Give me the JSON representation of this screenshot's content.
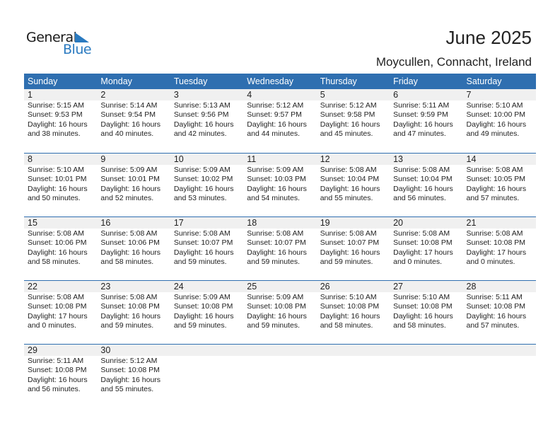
{
  "logo": {
    "general": "General",
    "blue": "Blue"
  },
  "header": {
    "title": "June 2025",
    "location": "Moycullen, Connacht, Ireland"
  },
  "colors": {
    "header_bg": "#2f6fb0",
    "date_band": "#f0f0f0",
    "logo_blue": "#2a7ac0"
  },
  "weekdays": [
    "Sunday",
    "Monday",
    "Tuesday",
    "Wednesday",
    "Thursday",
    "Friday",
    "Saturday"
  ],
  "weeks": [
    [
      {
        "day": "1",
        "sunrise": "Sunrise: 5:15 AM",
        "sunset": "Sunset: 9:53 PM",
        "daylight": "Daylight: 16 hours",
        "minutes": "and 38 minutes."
      },
      {
        "day": "2",
        "sunrise": "Sunrise: 5:14 AM",
        "sunset": "Sunset: 9:54 PM",
        "daylight": "Daylight: 16 hours",
        "minutes": "and 40 minutes."
      },
      {
        "day": "3",
        "sunrise": "Sunrise: 5:13 AM",
        "sunset": "Sunset: 9:56 PM",
        "daylight": "Daylight: 16 hours",
        "minutes": "and 42 minutes."
      },
      {
        "day": "4",
        "sunrise": "Sunrise: 5:12 AM",
        "sunset": "Sunset: 9:57 PM",
        "daylight": "Daylight: 16 hours",
        "minutes": "and 44 minutes."
      },
      {
        "day": "5",
        "sunrise": "Sunrise: 5:12 AM",
        "sunset": "Sunset: 9:58 PM",
        "daylight": "Daylight: 16 hours",
        "minutes": "and 45 minutes."
      },
      {
        "day": "6",
        "sunrise": "Sunrise: 5:11 AM",
        "sunset": "Sunset: 9:59 PM",
        "daylight": "Daylight: 16 hours",
        "minutes": "and 47 minutes."
      },
      {
        "day": "7",
        "sunrise": "Sunrise: 5:10 AM",
        "sunset": "Sunset: 10:00 PM",
        "daylight": "Daylight: 16 hours",
        "minutes": "and 49 minutes."
      }
    ],
    [
      {
        "day": "8",
        "sunrise": "Sunrise: 5:10 AM",
        "sunset": "Sunset: 10:01 PM",
        "daylight": "Daylight: 16 hours",
        "minutes": "and 50 minutes."
      },
      {
        "day": "9",
        "sunrise": "Sunrise: 5:09 AM",
        "sunset": "Sunset: 10:01 PM",
        "daylight": "Daylight: 16 hours",
        "minutes": "and 52 minutes."
      },
      {
        "day": "10",
        "sunrise": "Sunrise: 5:09 AM",
        "sunset": "Sunset: 10:02 PM",
        "daylight": "Daylight: 16 hours",
        "minutes": "and 53 minutes."
      },
      {
        "day": "11",
        "sunrise": "Sunrise: 5:09 AM",
        "sunset": "Sunset: 10:03 PM",
        "daylight": "Daylight: 16 hours",
        "minutes": "and 54 minutes."
      },
      {
        "day": "12",
        "sunrise": "Sunrise: 5:08 AM",
        "sunset": "Sunset: 10:04 PM",
        "daylight": "Daylight: 16 hours",
        "minutes": "and 55 minutes."
      },
      {
        "day": "13",
        "sunrise": "Sunrise: 5:08 AM",
        "sunset": "Sunset: 10:04 PM",
        "daylight": "Daylight: 16 hours",
        "minutes": "and 56 minutes."
      },
      {
        "day": "14",
        "sunrise": "Sunrise: 5:08 AM",
        "sunset": "Sunset: 10:05 PM",
        "daylight": "Daylight: 16 hours",
        "minutes": "and 57 minutes."
      }
    ],
    [
      {
        "day": "15",
        "sunrise": "Sunrise: 5:08 AM",
        "sunset": "Sunset: 10:06 PM",
        "daylight": "Daylight: 16 hours",
        "minutes": "and 58 minutes."
      },
      {
        "day": "16",
        "sunrise": "Sunrise: 5:08 AM",
        "sunset": "Sunset: 10:06 PM",
        "daylight": "Daylight: 16 hours",
        "minutes": "and 58 minutes."
      },
      {
        "day": "17",
        "sunrise": "Sunrise: 5:08 AM",
        "sunset": "Sunset: 10:07 PM",
        "daylight": "Daylight: 16 hours",
        "minutes": "and 59 minutes."
      },
      {
        "day": "18",
        "sunrise": "Sunrise: 5:08 AM",
        "sunset": "Sunset: 10:07 PM",
        "daylight": "Daylight: 16 hours",
        "minutes": "and 59 minutes."
      },
      {
        "day": "19",
        "sunrise": "Sunrise: 5:08 AM",
        "sunset": "Sunset: 10:07 PM",
        "daylight": "Daylight: 16 hours",
        "minutes": "and 59 minutes."
      },
      {
        "day": "20",
        "sunrise": "Sunrise: 5:08 AM",
        "sunset": "Sunset: 10:08 PM",
        "daylight": "Daylight: 17 hours",
        "minutes": "and 0 minutes."
      },
      {
        "day": "21",
        "sunrise": "Sunrise: 5:08 AM",
        "sunset": "Sunset: 10:08 PM",
        "daylight": "Daylight: 17 hours",
        "minutes": "and 0 minutes."
      }
    ],
    [
      {
        "day": "22",
        "sunrise": "Sunrise: 5:08 AM",
        "sunset": "Sunset: 10:08 PM",
        "daylight": "Daylight: 17 hours",
        "minutes": "and 0 minutes."
      },
      {
        "day": "23",
        "sunrise": "Sunrise: 5:08 AM",
        "sunset": "Sunset: 10:08 PM",
        "daylight": "Daylight: 16 hours",
        "minutes": "and 59 minutes."
      },
      {
        "day": "24",
        "sunrise": "Sunrise: 5:09 AM",
        "sunset": "Sunset: 10:08 PM",
        "daylight": "Daylight: 16 hours",
        "minutes": "and 59 minutes."
      },
      {
        "day": "25",
        "sunrise": "Sunrise: 5:09 AM",
        "sunset": "Sunset: 10:08 PM",
        "daylight": "Daylight: 16 hours",
        "minutes": "and 59 minutes."
      },
      {
        "day": "26",
        "sunrise": "Sunrise: 5:10 AM",
        "sunset": "Sunset: 10:08 PM",
        "daylight": "Daylight: 16 hours",
        "minutes": "and 58 minutes."
      },
      {
        "day": "27",
        "sunrise": "Sunrise: 5:10 AM",
        "sunset": "Sunset: 10:08 PM",
        "daylight": "Daylight: 16 hours",
        "minutes": "and 58 minutes."
      },
      {
        "day": "28",
        "sunrise": "Sunrise: 5:11 AM",
        "sunset": "Sunset: 10:08 PM",
        "daylight": "Daylight: 16 hours",
        "minutes": "and 57 minutes."
      }
    ],
    [
      {
        "day": "29",
        "sunrise": "Sunrise: 5:11 AM",
        "sunset": "Sunset: 10:08 PM",
        "daylight": "Daylight: 16 hours",
        "minutes": "and 56 minutes."
      },
      {
        "day": "30",
        "sunrise": "Sunrise: 5:12 AM",
        "sunset": "Sunset: 10:08 PM",
        "daylight": "Daylight: 16 hours",
        "minutes": "and 55 minutes."
      }
    ]
  ]
}
